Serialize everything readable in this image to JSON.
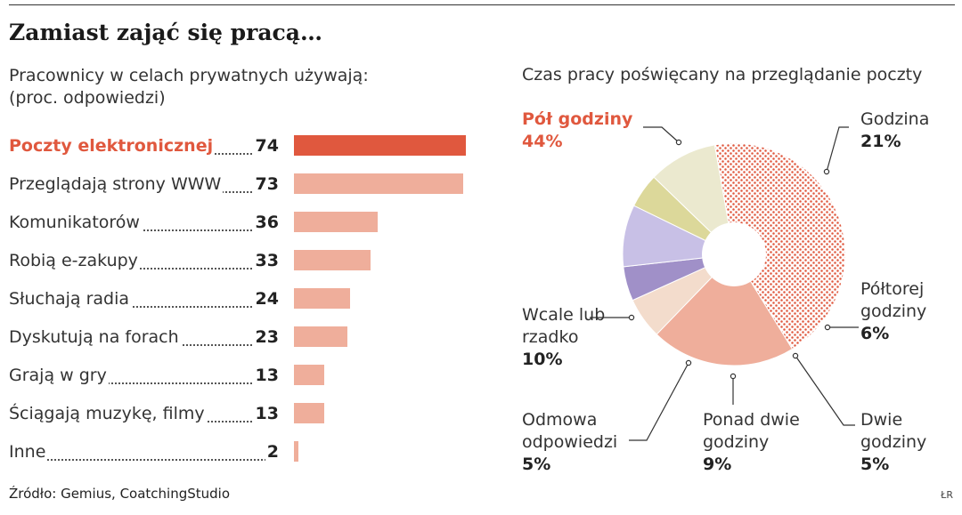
{
  "title": "Zamiast zająć się pracą…",
  "left_subtitle_line1": "Pracownicy w celach prywatnych używają:",
  "left_subtitle_line2": "(proc. odpowiedzi)",
  "right_subtitle": "Czas pracy poświęcany na przeglądanie poczty",
  "source": "Źródło: Gemius, CoatchingStudio",
  "credit": "ŁR",
  "colors": {
    "accent": "#e0583e",
    "bar": "#efae9b"
  },
  "chart_data": [
    {
      "type": "bar",
      "orientation": "horizontal",
      "categories": [
        "Poczty elektronicznej",
        "Przeglądają strony WWW",
        "Komunikatorów",
        "Robią e-zakupy",
        "Słuchają radia",
        "Dyskutują na forach",
        "Grają w gry",
        "Ściągają muzykę, filmy",
        "Inne"
      ],
      "values": [
        74,
        73,
        36,
        33,
        24,
        23,
        13,
        13,
        2
      ],
      "value_labels": [
        "74",
        "73",
        "36",
        "33",
        "24",
        "23",
        "13",
        "13",
        "2"
      ],
      "highlight_index": 0,
      "xlim": [
        0,
        74
      ]
    },
    {
      "type": "pie",
      "donut": true,
      "slices": [
        {
          "label": "Pół godziny",
          "value": 44,
          "value_label": "44%",
          "color": "#e0583e",
          "pattern": "dots",
          "highlight": true
        },
        {
          "label": "Godzina",
          "value": 21,
          "value_label": "21%",
          "color": "#efae9b"
        },
        {
          "label": "Półtorej godziny",
          "value": 6,
          "value_label": "6%",
          "color": "#f3dccc"
        },
        {
          "label": "Dwie godziny",
          "value": 5,
          "value_label": "5%",
          "color": "#a090c8"
        },
        {
          "label": "Ponad dwie godziny",
          "value": 9,
          "value_label": "9%",
          "color": "#c8c0e6"
        },
        {
          "label": "Odmowa odpowiedzi",
          "value": 5,
          "value_label": "5%",
          "color": "#dcd89a"
        },
        {
          "label": "Wcale lub rzadko",
          "value": 10,
          "value_label": "10%",
          "color": "#ebe9cf"
        }
      ]
    }
  ]
}
